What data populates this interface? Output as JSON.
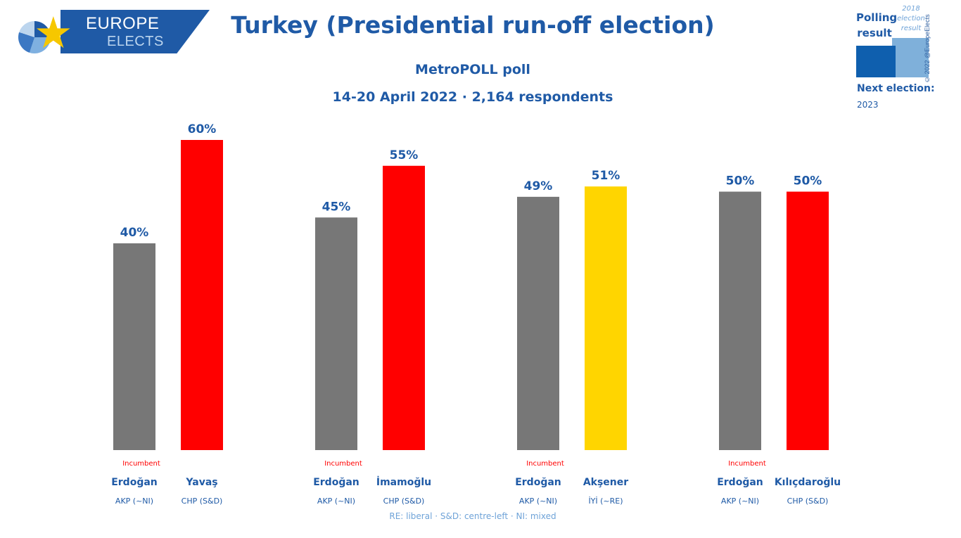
{
  "logo": {
    "word1": "EUROPE",
    "word2": "ELECTS",
    "star_icon": "star-icon"
  },
  "header": {
    "title": "Turkey (Presidential run-off election)",
    "subtitle": "MetroPOLL poll",
    "subtitle2": "14-20 April 2022 · 2,164 respondents"
  },
  "legend": {
    "polling_label": "Polling result",
    "previous_label": "2018 election result",
    "credit": "© 2022 @EuropeElects",
    "next_election_label": "Next election:",
    "next_election_value": "2023"
  },
  "footnote": "RE: liberal · S&D: centre-left · NI: mixed",
  "colors": {
    "grey": "#777777",
    "red": "#ff0000",
    "yellow": "#ffd500",
    "label": "#1f5aa6",
    "incumbent": "#ff0000"
  },
  "chart_data": {
    "type": "bar",
    "title": "Turkey (Presidential run-off election)",
    "xlabel": "",
    "ylabel": "",
    "ylim": [
      0,
      60
    ],
    "value_suffix": "%",
    "grid": false,
    "groups": [
      {
        "bars": [
          {
            "name": "Erdoğan",
            "party": "AKP (~NI)",
            "value": 40,
            "color": "#777777",
            "note": "Incumbent"
          },
          {
            "name": "Yavaş",
            "party": "CHP (S&D)",
            "value": 60,
            "color": "#ff0000",
            "note": ""
          }
        ]
      },
      {
        "bars": [
          {
            "name": "Erdoğan",
            "party": "AKP (~NI)",
            "value": 45,
            "color": "#777777",
            "note": "Incumbent"
          },
          {
            "name": "İmamoğlu",
            "party": "CHP (S&D)",
            "value": 55,
            "color": "#ff0000",
            "note": ""
          }
        ]
      },
      {
        "bars": [
          {
            "name": "Erdoğan",
            "party": "AKP (~NI)",
            "value": 49,
            "color": "#777777",
            "note": "Incumbent"
          },
          {
            "name": "Akşener",
            "party": "İYİ (~RE)",
            "value": 51,
            "color": "#ffd500",
            "note": ""
          }
        ]
      },
      {
        "bars": [
          {
            "name": "Erdoğan",
            "party": "AKP (~NI)",
            "value": 50,
            "color": "#777777",
            "note": "Incumbent"
          },
          {
            "name": "Kılıçdaroğlu",
            "party": "CHP (S&D)",
            "value": 50,
            "color": "#ff0000",
            "note": ""
          }
        ]
      }
    ]
  }
}
